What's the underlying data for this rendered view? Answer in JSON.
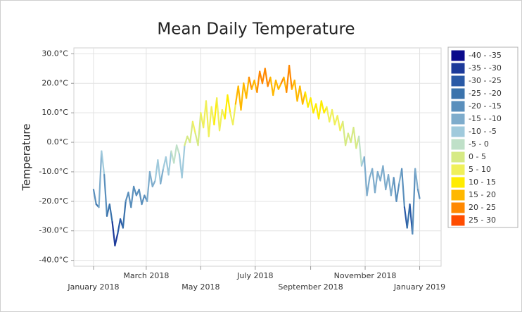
{
  "chart_data": {
    "type": "line",
    "title": "Mean Daily Temperature",
    "y_label": "Temperature",
    "x": [
      0,
      3,
      6,
      9,
      12,
      15,
      18,
      21,
      24,
      27,
      30,
      33,
      36,
      39,
      42,
      45,
      48,
      51,
      54,
      57,
      60,
      63,
      66,
      69,
      72,
      75,
      78,
      81,
      84,
      87,
      90,
      93,
      96,
      99,
      102,
      105,
      108,
      111,
      114,
      117,
      120,
      123,
      126,
      129,
      132,
      135,
      138,
      141,
      144,
      147,
      150,
      153,
      156,
      159,
      162,
      165,
      168,
      171,
      174,
      177,
      180,
      183,
      186,
      189,
      192,
      195,
      198,
      201,
      204,
      207,
      210,
      213,
      216,
      219,
      222,
      225,
      228,
      231,
      234,
      237,
      240,
      243,
      246,
      249,
      252,
      255,
      258,
      261,
      264,
      267,
      270,
      273,
      276,
      279,
      282,
      285,
      288,
      291,
      294,
      297,
      300,
      303,
      306,
      309,
      312,
      315,
      318,
      321,
      324,
      327,
      330,
      333,
      336,
      339,
      342,
      345,
      348,
      351,
      354,
      357,
      360,
      363,
      365
    ],
    "values": [
      -16,
      -21,
      -22,
      -3,
      -11,
      -25,
      -21,
      -27,
      -35,
      -31,
      -26,
      -29,
      -20,
      -17,
      -22,
      -15,
      -18,
      -16,
      -21,
      -18,
      -20,
      -10,
      -15,
      -13,
      -6,
      -14,
      -9,
      -5,
      -11,
      -3,
      -7,
      -1,
      -4,
      -12,
      -1,
      2,
      0,
      7,
      3,
      -1,
      10,
      5,
      14,
      2,
      12,
      6,
      15,
      4,
      11,
      8,
      16,
      10,
      6,
      13,
      19,
      11,
      20,
      15,
      22,
      18,
      21,
      17,
      24,
      20,
      25,
      19,
      22,
      16,
      21,
      18,
      20,
      22,
      17,
      26,
      18,
      21,
      14,
      19,
      13,
      17,
      12,
      15,
      10,
      13,
      8,
      14,
      10,
      12,
      7,
      11,
      6,
      9,
      4,
      7,
      -1,
      3,
      0,
      5,
      -2,
      2,
      -8,
      -5,
      -18,
      -12,
      -9,
      -17,
      -10,
      -13,
      -8,
      -16,
      -11,
      -18,
      -12,
      -20,
      -14,
      -9,
      -22,
      -29,
      -21,
      -31,
      -9,
      -16,
      -19
    ],
    "xlim": [
      -22,
      389
    ],
    "xticks": [
      {
        "value": 0,
        "label": "January 2018"
      },
      {
        "value": 59,
        "label": "March 2018"
      },
      {
        "value": 120,
        "label": "May 2018"
      },
      {
        "value": 181,
        "label": "July 2018"
      },
      {
        "value": 243,
        "label": "September 2018"
      },
      {
        "value": 304,
        "label": "November 2018"
      },
      {
        "value": 365,
        "label": "January 2019"
      }
    ],
    "ylim": [
      -42,
      32
    ],
    "yticks": [
      {
        "value": -40,
        "label": "-40.0°C"
      },
      {
        "value": -30,
        "label": "-30.0°C"
      },
      {
        "value": -20,
        "label": "-20.0°C"
      },
      {
        "value": -10,
        "label": "-10.0°C"
      },
      {
        "value": 0,
        "label": "0.0°C"
      },
      {
        "value": 10,
        "label": "10.0°C"
      },
      {
        "value": 20,
        "label": "20.0°C"
      },
      {
        "value": 30,
        "label": "30.0°C"
      }
    ],
    "grid": true,
    "legend": "right",
    "color_ranges": [
      {
        "min": -40,
        "max": -35,
        "label": "-40 - -35",
        "color": "#0a0a8c"
      },
      {
        "min": -35,
        "max": -30,
        "label": "-35 - -30",
        "color": "#1c3a9a"
      },
      {
        "min": -30,
        "max": -25,
        "label": "-30 - -25",
        "color": "#2a5aa6"
      },
      {
        "min": -25,
        "max": -20,
        "label": "-25 - -20",
        "color": "#3b73ac"
      },
      {
        "min": -20,
        "max": -15,
        "label": "-20 - -15",
        "color": "#5a8fbc"
      },
      {
        "min": -15,
        "max": -10,
        "label": "-15 - -10",
        "color": "#7eaccc"
      },
      {
        "min": -10,
        "max": -5,
        "label": "-10 - -5",
        "color": "#a0cadc"
      },
      {
        "min": -5,
        "max": 0,
        "label": "-5 - 0",
        "color": "#bfe0c8"
      },
      {
        "min": 0,
        "max": 5,
        "label": "0 - 5",
        "color": "#d6ea84"
      },
      {
        "min": 5,
        "max": 10,
        "label": "5 - 10",
        "color": "#f0f05a"
      },
      {
        "min": 10,
        "max": 15,
        "label": "10 - 15",
        "color": "#ffec00"
      },
      {
        "min": 15,
        "max": 20,
        "label": "15 - 20",
        "color": "#ffb800"
      },
      {
        "min": 20,
        "max": 25,
        "label": "20 - 25",
        "color": "#ff8800"
      },
      {
        "min": 25,
        "max": 30,
        "label": "25 - 30",
        "color": "#ff4c00"
      }
    ]
  }
}
